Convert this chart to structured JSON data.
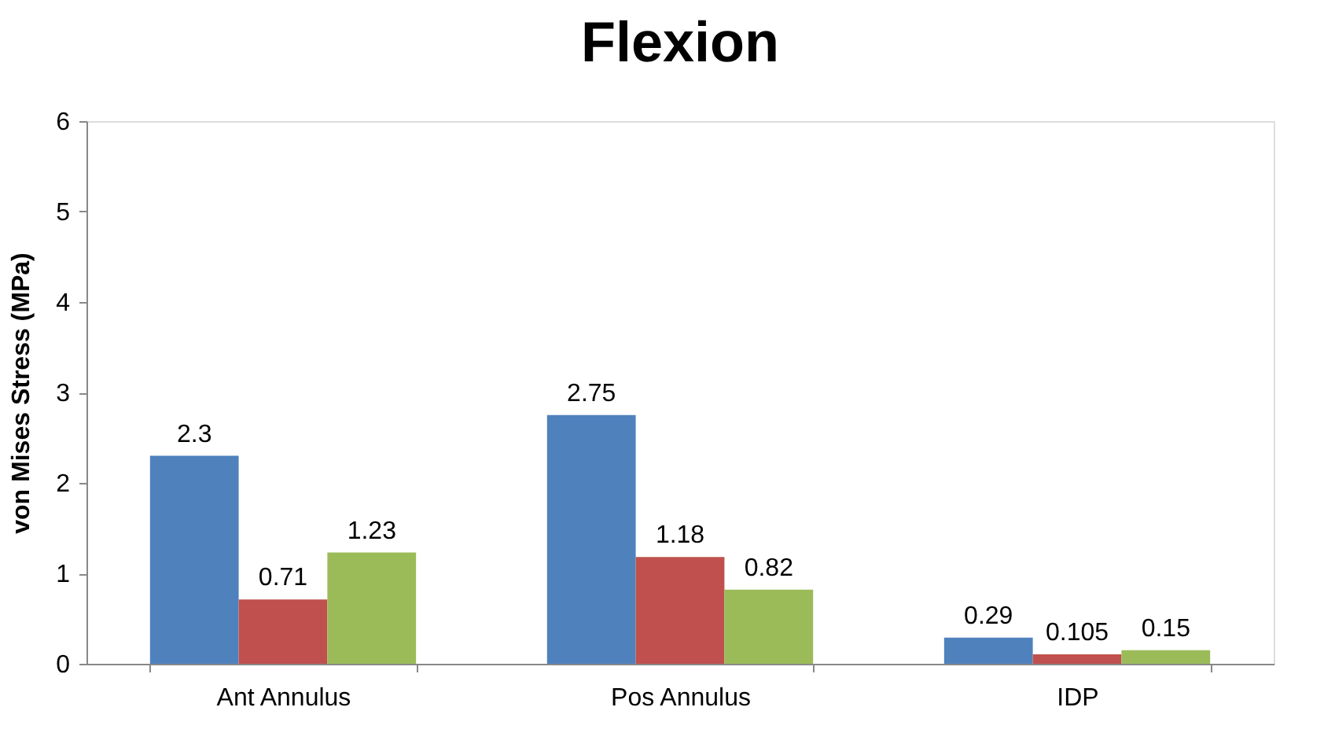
{
  "chart_data": {
    "type": "bar",
    "title": "Flexion",
    "ylabel": "von Mises Stress (MPa)",
    "categories": [
      "Ant Annulus",
      "Pos Annulus",
      "IDP"
    ],
    "series": [
      {
        "color": "#4f81bd",
        "values": [
          2.3,
          2.75,
          0.29
        ]
      },
      {
        "color": "#c0504d",
        "values": [
          0.71,
          1.18,
          0.105
        ]
      },
      {
        "color": "#9bbb59",
        "values": [
          1.23,
          0.82,
          0.15
        ]
      }
    ],
    "ylim": [
      0,
      6
    ],
    "yticks": [
      0,
      1,
      2,
      3,
      4,
      5,
      6
    ],
    "grid": false,
    "legend": false,
    "data_labels": true
  }
}
